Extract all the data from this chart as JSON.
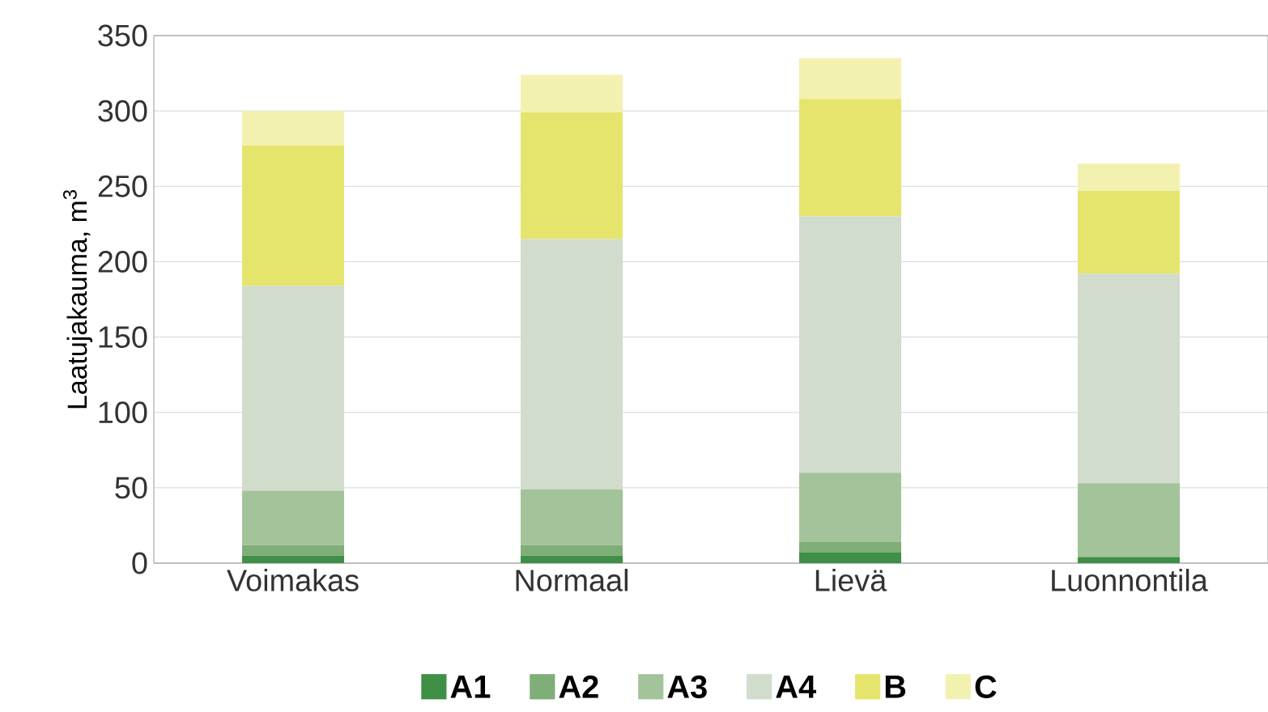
{
  "chart_data": {
    "type": "bar",
    "stacked": true,
    "ylabel": "Laatujakauma, m$^{3}$",
    "categories": [
      "Voimakas",
      "Normaal",
      "Lievä",
      "Luonnontila"
    ],
    "series": [
      {
        "name": "A1",
        "color": "#3f8f46",
        "values": [
          5,
          5,
          7,
          4
        ]
      },
      {
        "name": "A2",
        "color": "#7fae78",
        "values": [
          7,
          7,
          7,
          0
        ]
      },
      {
        "name": "A3",
        "color": "#a3c39a",
        "values": [
          36,
          37,
          46,
          49
        ]
      },
      {
        "name": "A4",
        "color": "#d1dccc",
        "values": [
          136,
          166,
          170,
          139
        ]
      },
      {
        "name": "B",
        "color": "#e5e56e",
        "values": [
          93,
          84,
          78,
          55
        ]
      },
      {
        "name": "C",
        "color": "#f3f1b0",
        "values": [
          23,
          25,
          27,
          18
        ]
      }
    ],
    "ylim": [
      0,
      350
    ],
    "yticks": [
      0,
      50,
      100,
      150,
      200,
      250,
      300,
      350
    ],
    "grid": "y",
    "legend": "bottom"
  }
}
